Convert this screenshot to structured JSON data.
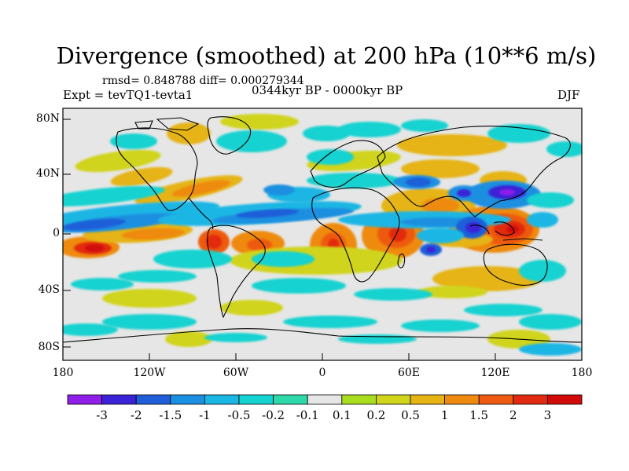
{
  "title": "Divergence (smoothed) at 200 hPa (10**6 m/s)",
  "stats": "rmsd= 0.848788 diff= 0.000279344",
  "experiment": "Expt = tevTQ1-tevta1",
  "period": "0344kyr BP - 0000kyr BP",
  "season": "DJF",
  "axes": {
    "lat_ticks": [
      "80N",
      "40N",
      "0",
      "40S",
      "80S"
    ],
    "lon_ticks": [
      "180",
      "120W",
      "60W",
      "0",
      "60E",
      "120E",
      "180"
    ]
  },
  "colorbar": {
    "labels": [
      "-3",
      "-2",
      "-1.5",
      "-1",
      "-0.5",
      "-0.2",
      "-0.1",
      "0.1",
      "0.2",
      "0.5",
      "1",
      "1.5",
      "2",
      "3"
    ],
    "colors": [
      "#8e1ee8",
      "#3a22d6",
      "#1f5ed8",
      "#1b8fe0",
      "#1ab6e4",
      "#14d2d0",
      "#2ed8a8",
      "#e6e6e6",
      "#a8dc1e",
      "#d0d41a",
      "#e6b414",
      "#ee8a10",
      "#ee5a10",
      "#e22a10",
      "#d20a0a"
    ]
  },
  "background_color": "#e6e6e6",
  "coast_color": "#000000"
}
